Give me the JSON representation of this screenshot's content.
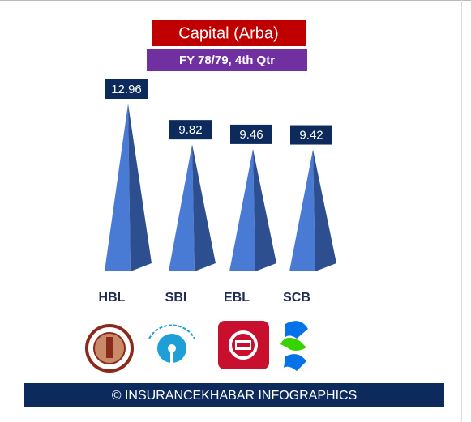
{
  "chart_data": {
    "type": "pyramid",
    "title": "Capital (Arba)",
    "subtitle": "FY 78/79, 4th Qtr",
    "categories": [
      "HBL",
      "SBI",
      "EBL",
      "SCB"
    ],
    "values": [
      12.96,
      9.82,
      9.46,
      9.42
    ],
    "color": "#4a7bd4",
    "footer": "© INSURANCEKHABAR INFOGRAPHICS"
  }
}
